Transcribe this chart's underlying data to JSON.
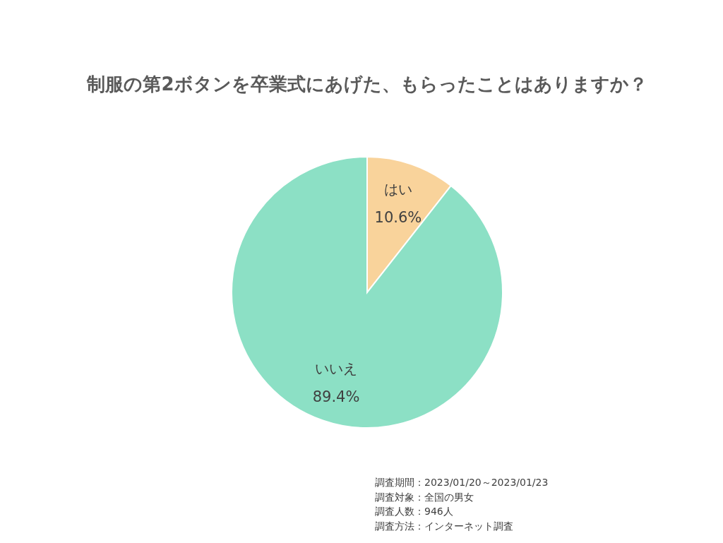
{
  "chart_data": {
    "type": "pie",
    "title": "制服の第2ボタンを卒業式にあげた、もらったことはありますか？",
    "categories": [
      "はい",
      "いいえ"
    ],
    "values": [
      10.6,
      89.4
    ],
    "value_labels": [
      "10.6%",
      "89.4%"
    ],
    "colors": [
      "#f9d39b",
      "#8ce0c5"
    ],
    "annotations": [
      "調査期間：2023/01/20～2023/01/23",
      "調査対象：全国の男女",
      "調査人数：946人",
      "調査方法：インターネット調査"
    ]
  }
}
